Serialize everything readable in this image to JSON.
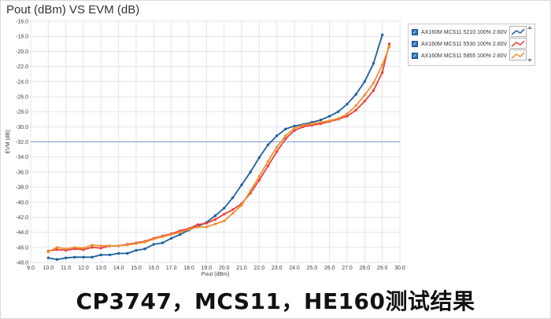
{
  "chart_data": {
    "type": "line",
    "title": "Pout (dBm) VS EVM (dB)",
    "xlabel": "Pout (dBm)",
    "ylabel": "EVM (dB)",
    "xlim": [
      9.0,
      30.0
    ],
    "ylim": [
      -48.0,
      -16.0
    ],
    "xticks": [
      "9.0",
      "10.0",
      "11.0",
      "12.0",
      "13.0",
      "14.0",
      "15.0",
      "16.0",
      "17.0",
      "18.0",
      "19.0",
      "20.0",
      "21.0",
      "22.0",
      "23.0",
      "24.0",
      "25.0",
      "26.0",
      "27.0",
      "28.0",
      "29.0",
      "30.0"
    ],
    "yticks": [
      "-16.0",
      "-18.0",
      "-20.0",
      "-22.0",
      "-24.0",
      "-26.0",
      "-28.0",
      "-30.0",
      "-32.0",
      "-34.0",
      "-36.0",
      "-38.0",
      "-40.0",
      "-42.0",
      "-44.0",
      "-46.0",
      "-48.0"
    ],
    "grid": true,
    "reference_line_y": -32.0,
    "legend_position": "top-right",
    "series": [
      {
        "name": "AX160M MCS11 5210 100% 2.60V",
        "color": "#1f5f9e",
        "x": [
          10.0,
          10.5,
          11.0,
          11.5,
          12.0,
          12.5,
          13.0,
          13.5,
          14.0,
          14.5,
          15.0,
          15.5,
          16.0,
          16.5,
          17.0,
          17.5,
          18.0,
          18.5,
          19.0,
          19.5,
          20.0,
          20.5,
          21.0,
          21.5,
          22.0,
          22.5,
          23.0,
          23.5,
          24.0,
          24.5,
          25.0,
          25.5,
          26.0,
          26.5,
          27.0,
          27.5,
          28.0,
          28.5,
          29.0
        ],
        "y": [
          -47.4,
          -47.6,
          -47.4,
          -47.3,
          -47.3,
          -47.3,
          -47.0,
          -47.0,
          -46.8,
          -46.8,
          -46.4,
          -46.2,
          -45.6,
          -45.4,
          -44.8,
          -44.3,
          -43.7,
          -43.2,
          -42.7,
          -41.8,
          -40.8,
          -39.4,
          -37.7,
          -36.0,
          -34.1,
          -32.4,
          -31.2,
          -30.3,
          -29.9,
          -29.7,
          -29.4,
          -29.1,
          -28.6,
          -28.0,
          -27.0,
          -25.7,
          -24.0,
          -21.6,
          -17.8
        ]
      },
      {
        "name": "AX160M MCS11 5530 100% 2.60V",
        "color": "#e8413c",
        "x": [
          10.0,
          10.5,
          11.0,
          11.5,
          12.0,
          12.5,
          13.0,
          13.5,
          14.0,
          14.5,
          15.0,
          15.5,
          16.0,
          16.5,
          17.0,
          17.5,
          18.0,
          18.5,
          19.0,
          19.5,
          20.0,
          20.5,
          21.0,
          21.5,
          22.0,
          22.5,
          23.0,
          23.5,
          24.0,
          24.5,
          25.0,
          25.5,
          26.0,
          26.5,
          27.0,
          27.5,
          28.0,
          28.5,
          29.0,
          29.4
        ],
        "y": [
          -46.5,
          -46.3,
          -46.4,
          -46.2,
          -46.3,
          -46.0,
          -46.1,
          -45.8,
          -45.8,
          -45.6,
          -45.4,
          -45.2,
          -44.8,
          -44.5,
          -44.2,
          -43.8,
          -43.5,
          -43.0,
          -42.8,
          -42.3,
          -41.6,
          -41.0,
          -40.2,
          -38.8,
          -37.1,
          -35.2,
          -33.3,
          -31.6,
          -30.5,
          -30.0,
          -29.8,
          -29.6,
          -29.3,
          -29.0,
          -28.6,
          -27.8,
          -26.6,
          -25.2,
          -22.8,
          -19.0
        ]
      },
      {
        "name": "AX160M MCS11 5855 100% 2.60V",
        "color": "#f09030",
        "x": [
          10.0,
          10.5,
          11.0,
          11.5,
          12.0,
          12.5,
          13.0,
          13.5,
          14.0,
          14.5,
          15.0,
          15.5,
          16.0,
          16.5,
          17.0,
          17.5,
          18.0,
          18.5,
          19.0,
          19.5,
          20.0,
          20.5,
          21.0,
          21.5,
          22.0,
          22.5,
          23.0,
          23.5,
          24.0,
          24.5,
          25.0,
          25.5,
          26.0,
          26.5,
          27.0,
          27.5,
          28.0,
          28.5,
          29.0,
          29.4
        ],
        "y": [
          -46.6,
          -46.0,
          -46.2,
          -46.0,
          -46.1,
          -45.7,
          -45.8,
          -45.8,
          -45.8,
          -45.7,
          -45.5,
          -45.3,
          -44.9,
          -44.6,
          -44.3,
          -44.0,
          -43.6,
          -43.3,
          -43.3,
          -42.9,
          -42.5,
          -41.5,
          -40.4,
          -38.5,
          -36.6,
          -34.6,
          -32.7,
          -31.2,
          -30.2,
          -29.8,
          -29.6,
          -29.4,
          -29.2,
          -28.9,
          -28.3,
          -27.2,
          -25.8,
          -24.2,
          -21.8,
          -19.4
        ]
      }
    ]
  },
  "caption": "CP3747，MCS11，HE160测试结果",
  "legend": {
    "items": [
      {
        "label": "AX160M MCS11 5210 100% 2.60V"
      },
      {
        "label": "AX160M MCS11 5530 100% 2.60V"
      },
      {
        "label": "AX160M MCS11 5855 100% 2.60V"
      }
    ]
  }
}
